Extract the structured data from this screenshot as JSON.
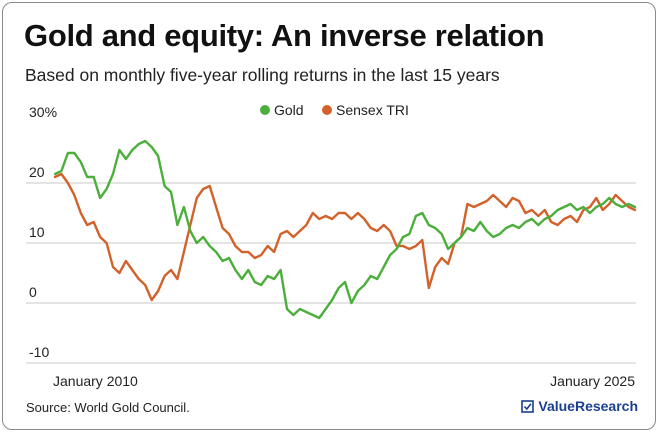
{
  "header": {
    "title": "Gold and equity: An inverse relation",
    "subtitle": "Based on monthly five-year rolling returns in the last 15 years"
  },
  "footer": {
    "source": "Source: World Gold Council.",
    "brand": "ValueResearch",
    "brand_icon": "checkbox-icon"
  },
  "colors": {
    "gold": "#4caf3c",
    "sensex": "#d2622b",
    "grid": "#c8c8c8",
    "brand": "#1b3f8f"
  },
  "chart_data": {
    "type": "line",
    "title": "Gold and equity: An inverse relation",
    "subtitle": "Based on monthly five-year rolling returns in the last 15 years",
    "ylim": [
      -10,
      30
    ],
    "yticks": [
      30,
      20,
      10,
      0,
      -10
    ],
    "ytick_labels": [
      "30%",
      "20",
      "10",
      "0",
      "-10"
    ],
    "xlim": [
      "2010-01",
      "2025-01"
    ],
    "xtick_labels": [
      "January 2010",
      "January 2025"
    ],
    "grid": true,
    "legend_position": "top-center",
    "series": [
      {
        "name": "Gold",
        "color": "#4caf3c",
        "points": [
          [
            "2010-01",
            21.5
          ],
          [
            "2010-03",
            22.0
          ],
          [
            "2010-05",
            25.0
          ],
          [
            "2010-07",
            25.0
          ],
          [
            "2010-09",
            23.5
          ],
          [
            "2010-11",
            21.0
          ],
          [
            "2011-01",
            21.0
          ],
          [
            "2011-03",
            17.5
          ],
          [
            "2011-05",
            19.0
          ],
          [
            "2011-07",
            21.5
          ],
          [
            "2011-09",
            25.5
          ],
          [
            "2011-11",
            24.0
          ],
          [
            "2012-01",
            25.5
          ],
          [
            "2012-03",
            26.5
          ],
          [
            "2012-05",
            27.0
          ],
          [
            "2012-07",
            26.0
          ],
          [
            "2012-09",
            24.5
          ],
          [
            "2012-11",
            19.5
          ],
          [
            "2013-01",
            18.5
          ],
          [
            "2013-03",
            13.0
          ],
          [
            "2013-05",
            16.0
          ],
          [
            "2013-07",
            12.0
          ],
          [
            "2013-09",
            10.0
          ],
          [
            "2013-11",
            11.0
          ],
          [
            "2014-01",
            9.5
          ],
          [
            "2014-03",
            8.5
          ],
          [
            "2014-05",
            7.0
          ],
          [
            "2014-07",
            7.5
          ],
          [
            "2014-09",
            5.5
          ],
          [
            "2014-11",
            4.0
          ],
          [
            "2015-01",
            5.5
          ],
          [
            "2015-03",
            3.5
          ],
          [
            "2015-05",
            3.0
          ],
          [
            "2015-07",
            4.5
          ],
          [
            "2015-09",
            4.0
          ],
          [
            "2015-11",
            5.5
          ],
          [
            "2016-01",
            -1.0
          ],
          [
            "2016-03",
            -2.0
          ],
          [
            "2016-05",
            -1.0
          ],
          [
            "2016-07",
            -1.5
          ],
          [
            "2016-09",
            -2.0
          ],
          [
            "2016-11",
            -2.5
          ],
          [
            "2017-01",
            -1.0
          ],
          [
            "2017-03",
            0.5
          ],
          [
            "2017-05",
            2.5
          ],
          [
            "2017-07",
            3.5
          ],
          [
            "2017-09",
            0.0
          ],
          [
            "2017-11",
            2.0
          ],
          [
            "2018-01",
            3.0
          ],
          [
            "2018-03",
            4.5
          ],
          [
            "2018-05",
            4.0
          ],
          [
            "2018-07",
            6.0
          ],
          [
            "2018-09",
            8.0
          ],
          [
            "2018-11",
            9.0
          ],
          [
            "2019-01",
            11.0
          ],
          [
            "2019-03",
            11.5
          ],
          [
            "2019-05",
            14.5
          ],
          [
            "2019-07",
            15.0
          ],
          [
            "2019-09",
            13.0
          ],
          [
            "2019-11",
            12.5
          ],
          [
            "2020-01",
            11.5
          ],
          [
            "2020-03",
            9.0
          ],
          [
            "2020-05",
            10.0
          ],
          [
            "2020-07",
            11.0
          ],
          [
            "2020-09",
            12.5
          ],
          [
            "2020-11",
            12.0
          ],
          [
            "2021-01",
            13.5
          ],
          [
            "2021-03",
            12.0
          ],
          [
            "2021-05",
            11.0
          ],
          [
            "2021-07",
            11.5
          ],
          [
            "2021-09",
            12.5
          ],
          [
            "2021-11",
            13.0
          ],
          [
            "2022-01",
            12.5
          ],
          [
            "2022-03",
            13.5
          ],
          [
            "2022-05",
            14.0
          ],
          [
            "2022-07",
            13.0
          ],
          [
            "2022-09",
            14.0
          ],
          [
            "2022-11",
            14.5
          ],
          [
            "2023-01",
            15.5
          ],
          [
            "2023-03",
            16.0
          ],
          [
            "2023-05",
            16.5
          ],
          [
            "2023-07",
            15.5
          ],
          [
            "2023-09",
            16.0
          ],
          [
            "2023-11",
            15.0
          ],
          [
            "2024-01",
            16.0
          ],
          [
            "2024-03",
            16.5
          ],
          [
            "2024-05",
            17.5
          ],
          [
            "2024-07",
            16.5
          ],
          [
            "2024-09",
            16.0
          ],
          [
            "2024-11",
            16.5
          ],
          [
            "2025-01",
            16.0
          ]
        ]
      },
      {
        "name": "Sensex TRI",
        "color": "#d2622b",
        "points": [
          [
            "2010-01",
            21.0
          ],
          [
            "2010-03",
            21.5
          ],
          [
            "2010-05",
            20.0
          ],
          [
            "2010-07",
            18.0
          ],
          [
            "2010-09",
            15.0
          ],
          [
            "2010-11",
            13.0
          ],
          [
            "2011-01",
            13.5
          ],
          [
            "2011-03",
            11.0
          ],
          [
            "2011-05",
            10.0
          ],
          [
            "2011-07",
            6.0
          ],
          [
            "2011-09",
            5.0
          ],
          [
            "2011-11",
            7.0
          ],
          [
            "2012-01",
            5.5
          ],
          [
            "2012-03",
            4.0
          ],
          [
            "2012-05",
            3.0
          ],
          [
            "2012-07",
            0.5
          ],
          [
            "2012-09",
            2.0
          ],
          [
            "2012-11",
            4.5
          ],
          [
            "2013-01",
            5.5
          ],
          [
            "2013-03",
            4.0
          ],
          [
            "2013-05",
            8.5
          ],
          [
            "2013-07",
            13.0
          ],
          [
            "2013-09",
            17.5
          ],
          [
            "2013-11",
            19.0
          ],
          [
            "2014-01",
            19.5
          ],
          [
            "2014-03",
            16.0
          ],
          [
            "2014-05",
            12.5
          ],
          [
            "2014-07",
            11.5
          ],
          [
            "2014-09",
            9.5
          ],
          [
            "2014-11",
            8.5
          ],
          [
            "2015-01",
            8.5
          ],
          [
            "2015-03",
            7.5
          ],
          [
            "2015-05",
            8.0
          ],
          [
            "2015-07",
            9.5
          ],
          [
            "2015-09",
            8.5
          ],
          [
            "2015-11",
            11.5
          ],
          [
            "2016-01",
            12.0
          ],
          [
            "2016-03",
            11.0
          ],
          [
            "2016-05",
            12.0
          ],
          [
            "2016-07",
            13.0
          ],
          [
            "2016-09",
            15.0
          ],
          [
            "2016-11",
            14.0
          ],
          [
            "2017-01",
            14.5
          ],
          [
            "2017-03",
            14.0
          ],
          [
            "2017-05",
            15.0
          ],
          [
            "2017-07",
            15.0
          ],
          [
            "2017-09",
            14.0
          ],
          [
            "2017-11",
            15.0
          ],
          [
            "2018-01",
            14.0
          ],
          [
            "2018-03",
            12.5
          ],
          [
            "2018-05",
            12.0
          ],
          [
            "2018-07",
            13.0
          ],
          [
            "2018-09",
            12.0
          ],
          [
            "2018-11",
            9.5
          ],
          [
            "2019-01",
            9.5
          ],
          [
            "2019-03",
            9.0
          ],
          [
            "2019-05",
            9.5
          ],
          [
            "2019-07",
            10.5
          ],
          [
            "2019-09",
            2.5
          ],
          [
            "2019-11",
            6.0
          ],
          [
            "2020-01",
            7.5
          ],
          [
            "2020-03",
            6.5
          ],
          [
            "2020-05",
            10.0
          ],
          [
            "2020-07",
            11.0
          ],
          [
            "2020-09",
            16.5
          ],
          [
            "2020-11",
            16.0
          ],
          [
            "2021-01",
            16.5
          ],
          [
            "2021-03",
            17.0
          ],
          [
            "2021-05",
            18.0
          ],
          [
            "2021-07",
            17.0
          ],
          [
            "2021-09",
            16.0
          ],
          [
            "2021-11",
            17.5
          ],
          [
            "2022-01",
            17.0
          ],
          [
            "2022-03",
            15.0
          ],
          [
            "2022-05",
            15.5
          ],
          [
            "2022-07",
            14.5
          ],
          [
            "2022-09",
            15.5
          ],
          [
            "2022-11",
            13.5
          ],
          [
            "2023-01",
            13.0
          ],
          [
            "2023-03",
            14.0
          ],
          [
            "2023-05",
            14.5
          ],
          [
            "2023-07",
            13.5
          ],
          [
            "2023-09",
            15.5
          ],
          [
            "2023-11",
            16.0
          ],
          [
            "2024-01",
            17.5
          ],
          [
            "2024-03",
            15.5
          ],
          [
            "2024-05",
            16.5
          ],
          [
            "2024-07",
            18.0
          ],
          [
            "2024-09",
            17.0
          ],
          [
            "2024-11",
            16.0
          ],
          [
            "2025-01",
            15.5
          ]
        ]
      }
    ]
  }
}
